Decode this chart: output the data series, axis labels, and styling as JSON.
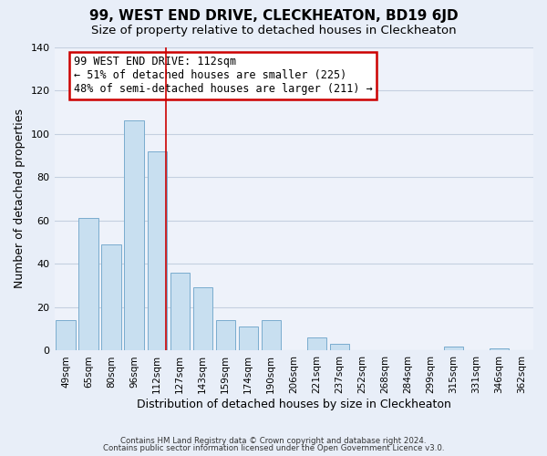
{
  "title": "99, WEST END DRIVE, CLECKHEATON, BD19 6JD",
  "subtitle": "Size of property relative to detached houses in Cleckheaton",
  "xlabel": "Distribution of detached houses by size in Cleckheaton",
  "ylabel": "Number of detached properties",
  "bar_labels": [
    "49sqm",
    "65sqm",
    "80sqm",
    "96sqm",
    "112sqm",
    "127sqm",
    "143sqm",
    "159sqm",
    "174sqm",
    "190sqm",
    "206sqm",
    "221sqm",
    "237sqm",
    "252sqm",
    "268sqm",
    "284sqm",
    "299sqm",
    "315sqm",
    "331sqm",
    "346sqm",
    "362sqm"
  ],
  "bar_values": [
    14,
    61,
    49,
    106,
    92,
    36,
    29,
    14,
    11,
    14,
    0,
    6,
    3,
    0,
    0,
    0,
    0,
    2,
    0,
    1,
    0
  ],
  "bar_color": "#c8dff0",
  "bar_edge_color": "#7aacce",
  "highlight_bar_index": 4,
  "ylim": [
    0,
    140
  ],
  "yticks": [
    0,
    20,
    40,
    60,
    80,
    100,
    120,
    140
  ],
  "annotation_title": "99 WEST END DRIVE: 112sqm",
  "annotation_line1": "← 51% of detached houses are smaller (225)",
  "annotation_line2": "48% of semi-detached houses are larger (211) →",
  "footer_line1": "Contains HM Land Registry data © Crown copyright and database right 2024.",
  "footer_line2": "Contains public sector information licensed under the Open Government Licence v3.0.",
  "background_color": "#e8eef8",
  "plot_background_color": "#eef2fa",
  "grid_color": "#c5d0e0",
  "title_fontsize": 11,
  "subtitle_fontsize": 9.5,
  "annotation_box_edge_color": "#cc0000",
  "annotation_box_face_color": "#ffffff"
}
